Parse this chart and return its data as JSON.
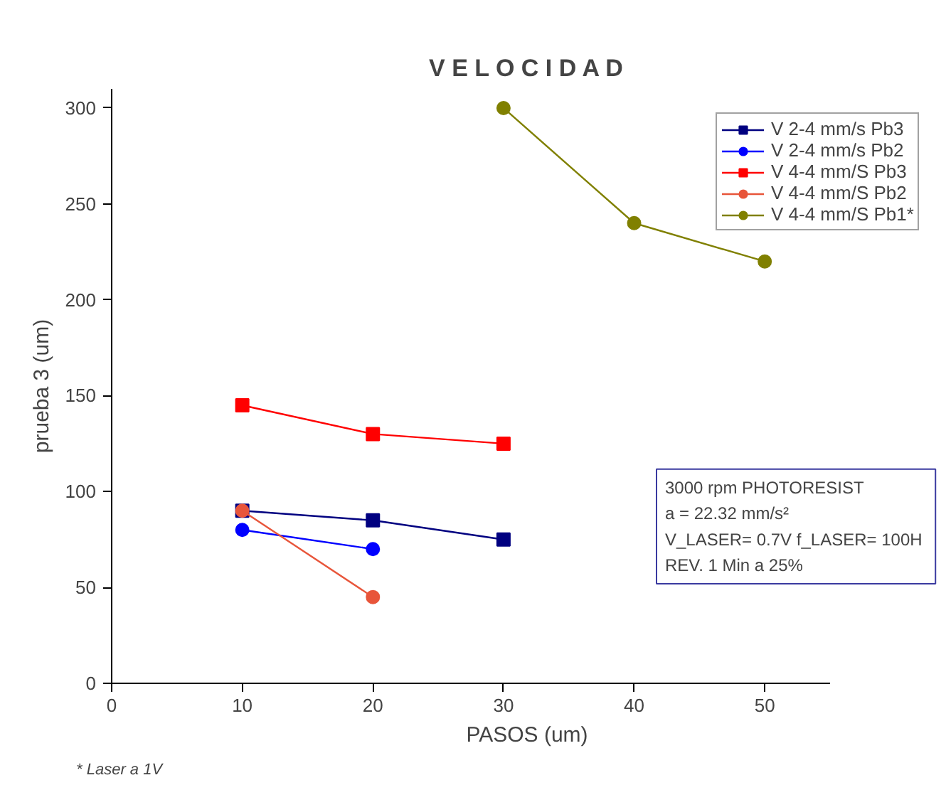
{
  "chart_data": {
    "type": "line",
    "title": "V E L O C I D A D",
    "xlabel": "PASOS (um)",
    "ylabel": "prueba 3 (um)",
    "xlim": [
      0,
      55
    ],
    "ylim": [
      0,
      310
    ],
    "xticks": [
      0,
      10,
      20,
      30,
      40,
      50
    ],
    "yticks": [
      0,
      50,
      100,
      150,
      200,
      250,
      300
    ],
    "grid": false,
    "legend": "top right",
    "series": [
      {
        "name": "V 2-4 mm/s Pb3",
        "color": "#000080",
        "marker": "square",
        "x": [
          10,
          20,
          30
        ],
        "values": [
          90,
          85,
          75
        ]
      },
      {
        "name": "V 2-4 mm/s Pb2",
        "color": "#0000ff",
        "marker": "circle",
        "x": [
          10,
          20
        ],
        "values": [
          80,
          70
        ]
      },
      {
        "name": "V 4-4 mm/S Pb3",
        "color": "#ff0000",
        "marker": "square",
        "x": [
          10,
          20,
          30
        ],
        "values": [
          145,
          130,
          125
        ]
      },
      {
        "name": "V 4-4 mm/S Pb2",
        "color": "#e8553a",
        "marker": "circle",
        "x": [
          10,
          20
        ],
        "values": [
          90,
          45
        ]
      },
      {
        "name": "V 4-4 mm/S Pb1*",
        "color": "#808000",
        "marker": "circle",
        "x": [
          30,
          40,
          50
        ],
        "values": [
          300,
          240,
          220
        ]
      }
    ],
    "annotations": [
      "3000 rpm PHOTORESIST\na = 22.32 mm/s²\nV_LASER= 0.7V  f_LASER= 100H\n REV. 1 Min a 25%",
      "* Laser a 1V"
    ]
  }
}
